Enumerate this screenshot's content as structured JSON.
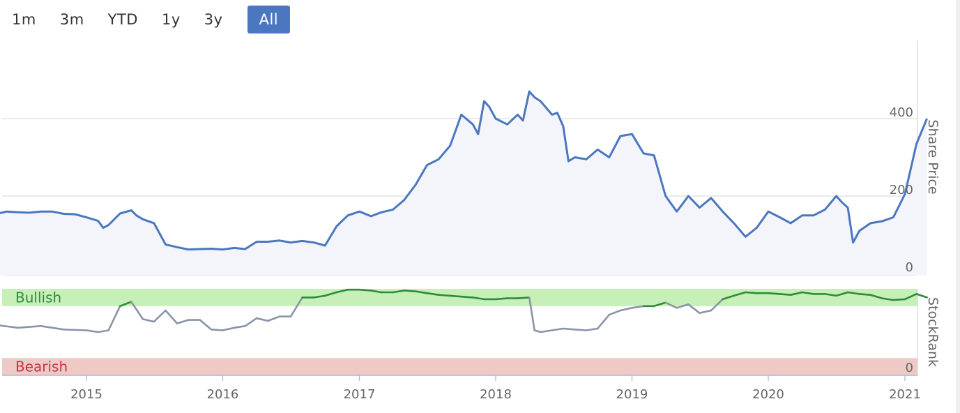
{
  "range_selector": {
    "buttons": [
      {
        "label": "1m"
      },
      {
        "label": "3m"
      },
      {
        "label": "YTD"
      },
      {
        "label": "1y"
      },
      {
        "label": "3y"
      },
      {
        "label": "All"
      }
    ],
    "active": "All"
  },
  "colors": {
    "price_line": "#4a77c0",
    "price_fill": "#f3f5fa",
    "bullish_band": "#c6f0b8",
    "bearish_band": "#eecac6",
    "bullish_text": "#2e8b3a",
    "bearish_text": "#cc3344",
    "rank_bull_line": "#2e8b3a",
    "rank_neutral_line": "#8a94a8",
    "rank_bear_line": "#cc3344",
    "grid": "#dddddd"
  },
  "chart_data": [
    {
      "type": "area",
      "ylabel": "Share Price",
      "ylim": [
        0,
        510
      ],
      "yticks": [
        "0",
        "200",
        "400"
      ],
      "grid": true,
      "series": [
        {
          "points": [
            [
              "2014-05-01",
              153
            ],
            [
              "2014-06-01",
              160
            ],
            [
              "2014-07-01",
              158
            ],
            [
              "2014-08-01",
              157
            ],
            [
              "2014-09-01",
              160
            ],
            [
              "2014-10-01",
              160
            ],
            [
              "2014-11-01",
              154
            ],
            [
              "2014-12-01",
              153
            ],
            [
              "2015-01-01",
              145
            ],
            [
              "2015-02-01",
              136
            ],
            [
              "2015-02-15",
              118
            ],
            [
              "2015-03-01",
              125
            ],
            [
              "2015-04-01",
              155
            ],
            [
              "2015-05-01",
              163
            ],
            [
              "2015-05-15",
              150
            ],
            [
              "2015-06-01",
              140
            ],
            [
              "2015-07-01",
              130
            ],
            [
              "2015-08-01",
              75
            ],
            [
              "2015-09-01",
              68
            ],
            [
              "2015-10-01",
              62
            ],
            [
              "2015-11-01",
              63
            ],
            [
              "2015-12-01",
              64
            ],
            [
              "2016-01-01",
              62
            ],
            [
              "2016-02-01",
              66
            ],
            [
              "2016-03-01",
              63
            ],
            [
              "2016-04-01",
              82
            ],
            [
              "2016-05-01",
              82
            ],
            [
              "2016-06-01",
              85
            ],
            [
              "2016-07-01",
              80
            ],
            [
              "2016-08-01",
              84
            ],
            [
              "2016-09-01",
              80
            ],
            [
              "2016-10-01",
              72
            ],
            [
              "2016-11-01",
              122
            ],
            [
              "2016-12-01",
              150
            ],
            [
              "2017-01-01",
              160
            ],
            [
              "2017-02-01",
              148
            ],
            [
              "2017-03-01",
              158
            ],
            [
              "2017-04-01",
              165
            ],
            [
              "2017-05-01",
              190
            ],
            [
              "2017-06-01",
              230
            ],
            [
              "2017-07-01",
              280
            ],
            [
              "2017-08-01",
              295
            ],
            [
              "2017-09-01",
              330
            ],
            [
              "2017-10-01",
              410
            ],
            [
              "2017-11-01",
              385
            ],
            [
              "2017-11-15",
              360
            ],
            [
              "2017-12-01",
              445
            ],
            [
              "2017-12-15",
              430
            ],
            [
              "2018-01-01",
              400
            ],
            [
              "2018-02-01",
              385
            ],
            [
              "2018-03-01",
              410
            ],
            [
              "2018-03-15",
              395
            ],
            [
              "2018-04-01",
              470
            ],
            [
              "2018-04-15",
              455
            ],
            [
              "2018-05-01",
              445
            ],
            [
              "2018-06-01",
              410
            ],
            [
              "2018-06-15",
              415
            ],
            [
              "2018-07-01",
              380
            ],
            [
              "2018-07-15",
              290
            ],
            [
              "2018-08-01",
              300
            ],
            [
              "2018-09-01",
              295
            ],
            [
              "2018-10-01",
              320
            ],
            [
              "2018-11-01",
              300
            ],
            [
              "2018-12-01",
              355
            ],
            [
              "2019-01-01",
              360
            ],
            [
              "2019-02-01",
              310
            ],
            [
              "2019-03-01",
              305
            ],
            [
              "2019-04-01",
              200
            ],
            [
              "2019-05-01",
              160
            ],
            [
              "2019-06-01",
              200
            ],
            [
              "2019-07-01",
              170
            ],
            [
              "2019-08-01",
              195
            ],
            [
              "2019-09-01",
              160
            ],
            [
              "2019-10-01",
              130
            ],
            [
              "2019-11-01",
              95
            ],
            [
              "2019-12-01",
              118
            ],
            [
              "2020-01-01",
              160
            ],
            [
              "2020-02-01",
              145
            ],
            [
              "2020-03-01",
              130
            ],
            [
              "2020-04-01",
              150
            ],
            [
              "2020-05-01",
              150
            ],
            [
              "2020-06-01",
              165
            ],
            [
              "2020-07-01",
              200
            ],
            [
              "2020-07-15",
              185
            ],
            [
              "2020-08-01",
              170
            ],
            [
              "2020-08-15",
              80
            ],
            [
              "2020-09-01",
              110
            ],
            [
              "2020-10-01",
              130
            ],
            [
              "2020-11-01",
              135
            ],
            [
              "2020-12-01",
              145
            ],
            [
              "2021-01-01",
              205
            ],
            [
              "2021-02-01",
              335
            ],
            [
              "2021-03-01",
              400
            ]
          ]
        }
      ]
    },
    {
      "type": "line",
      "ylabel": "StockRank",
      "ylim": [
        0,
        100
      ],
      "yticks": [
        "0"
      ],
      "bands": [
        {
          "label": "Bullish",
          "from": 80,
          "to": 100
        },
        {
          "label": "Bearish",
          "from": 0,
          "to": 20
        }
      ],
      "series": [
        {
          "points": [
            [
              "2014-05-01",
              0
            ],
            [
              "2014-05-08",
              58
            ],
            [
              "2014-07-01",
              55
            ],
            [
              "2014-09-01",
              57
            ],
            [
              "2014-11-01",
              53
            ],
            [
              "2015-01-01",
              52
            ],
            [
              "2015-02-01",
              50
            ],
            [
              "2015-03-01",
              52
            ],
            [
              "2015-04-01",
              80
            ],
            [
              "2015-05-01",
              85
            ],
            [
              "2015-06-01",
              65
            ],
            [
              "2015-07-01",
              62
            ],
            [
              "2015-08-01",
              75
            ],
            [
              "2015-09-01",
              60
            ],
            [
              "2015-10-01",
              64
            ],
            [
              "2015-11-01",
              64
            ],
            [
              "2015-12-01",
              53
            ],
            [
              "2016-01-01",
              52
            ],
            [
              "2016-02-01",
              55
            ],
            [
              "2016-03-01",
              57
            ],
            [
              "2016-04-01",
              66
            ],
            [
              "2016-05-01",
              63
            ],
            [
              "2016-06-01",
              68
            ],
            [
              "2016-07-01",
              68
            ],
            [
              "2016-08-01",
              90
            ],
            [
              "2016-09-01",
              90
            ],
            [
              "2016-10-01",
              92
            ],
            [
              "2016-11-01",
              96
            ],
            [
              "2016-12-01",
              99
            ],
            [
              "2017-01-01",
              99
            ],
            [
              "2017-02-01",
              98
            ],
            [
              "2017-03-01",
              96
            ],
            [
              "2017-04-01",
              96
            ],
            [
              "2017-05-01",
              98
            ],
            [
              "2017-06-01",
              97
            ],
            [
              "2017-07-01",
              95
            ],
            [
              "2017-08-01",
              93
            ],
            [
              "2017-09-01",
              92
            ],
            [
              "2017-10-01",
              91
            ],
            [
              "2017-11-01",
              90
            ],
            [
              "2017-12-01",
              88
            ],
            [
              "2018-01-01",
              88
            ],
            [
              "2018-02-01",
              89
            ],
            [
              "2018-03-01",
              89
            ],
            [
              "2018-04-01",
              90
            ],
            [
              "2018-04-15",
              52
            ],
            [
              "2018-05-01",
              50
            ],
            [
              "2018-06-01",
              52
            ],
            [
              "2018-07-01",
              54
            ],
            [
              "2018-08-01",
              53
            ],
            [
              "2018-09-01",
              52
            ],
            [
              "2018-10-01",
              54
            ],
            [
              "2018-11-01",
              70
            ],
            [
              "2018-12-01",
              75
            ],
            [
              "2019-01-01",
              78
            ],
            [
              "2019-02-01",
              80
            ],
            [
              "2019-03-01",
              80
            ],
            [
              "2019-04-01",
              84
            ],
            [
              "2019-05-01",
              78
            ],
            [
              "2019-06-01",
              82
            ],
            [
              "2019-07-01",
              72
            ],
            [
              "2019-08-01",
              75
            ],
            [
              "2019-09-01",
              88
            ],
            [
              "2019-10-01",
              92
            ],
            [
              "2019-11-01",
              96
            ],
            [
              "2019-12-01",
              95
            ],
            [
              "2020-01-01",
              95
            ],
            [
              "2020-02-01",
              94
            ],
            [
              "2020-03-01",
              93
            ],
            [
              "2020-04-01",
              96
            ],
            [
              "2020-05-01",
              94
            ],
            [
              "2020-06-01",
              94
            ],
            [
              "2020-07-01",
              92
            ],
            [
              "2020-08-01",
              96
            ],
            [
              "2020-09-01",
              94
            ],
            [
              "2020-10-01",
              93
            ],
            [
              "2020-11-01",
              89
            ],
            [
              "2020-12-01",
              87
            ],
            [
              "2021-01-01",
              88
            ],
            [
              "2021-02-01",
              94
            ],
            [
              "2021-03-01",
              90
            ]
          ]
        }
      ]
    }
  ],
  "x_axis": {
    "ticks": [
      "2015",
      "2016",
      "2017",
      "2018",
      "2019",
      "2020",
      "2021"
    ]
  }
}
